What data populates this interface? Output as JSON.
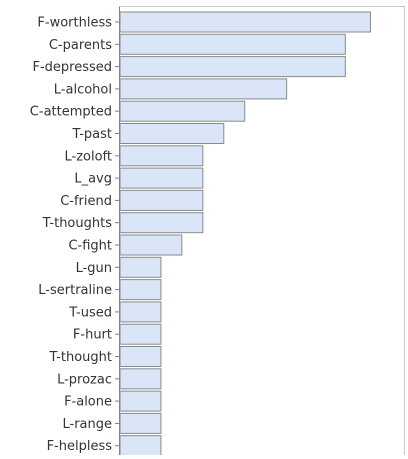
{
  "chart_data": {
    "type": "bar",
    "orientation": "horizontal",
    "title": "",
    "xlabel": "",
    "ylabel": "",
    "grid": false,
    "legend": "none",
    "colors": {
      "bar_fill": "#dbe5f8",
      "bar_stroke": "#8a8a8a",
      "axis": "#7f7f7f",
      "tick_label": "#333333"
    },
    "xlim": [
      0,
      6.8
    ],
    "categories": [
      "F-worthless",
      "C-parents",
      "F-depressed",
      "L-alcohol",
      "C-attempted",
      "T-past",
      "L-zoloft",
      "L_avg",
      "C-friend",
      "T-thoughts",
      "C-fight",
      "L-gun",
      "L-sertraline",
      "T-used",
      "F-hurt",
      "T-thought",
      "L-prozac",
      "F-alone",
      "L-range",
      "F-helpless"
    ],
    "values": [
      6.0,
      5.4,
      5.4,
      4.0,
      3.0,
      2.5,
      2.0,
      2.0,
      2.0,
      2.0,
      1.5,
      1.0,
      1.0,
      1.0,
      1.0,
      1.0,
      1.0,
      1.0,
      1.0,
      1.0
    ]
  }
}
